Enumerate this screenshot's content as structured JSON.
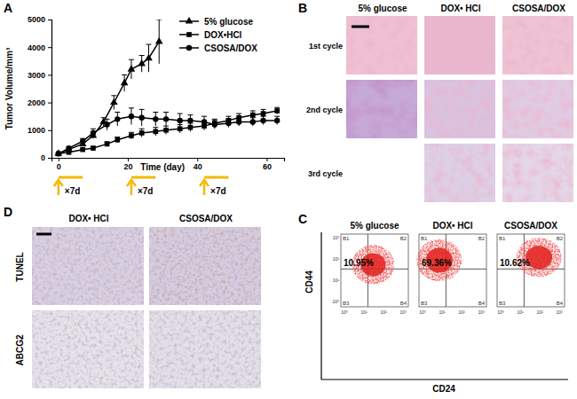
{
  "panel_labels": [
    "A",
    "B",
    "C",
    "D"
  ],
  "chart_data": {
    "type": "line",
    "x_label": "Time (day)",
    "y_label": "Tumor Volume/mm³",
    "xlim": [
      -2,
      65
    ],
    "xticks": [
      0,
      20,
      40,
      60
    ],
    "ylim": [
      0,
      5000
    ],
    "yticks": [
      0,
      1000,
      2000,
      3000,
      4000,
      5000
    ],
    "legend": "top-right",
    "series": [
      {
        "name": "5% glucose",
        "color": "#000000",
        "marker": "triangle",
        "x": [
          0,
          3,
          7,
          10,
          13,
          16,
          19,
          21,
          24,
          26,
          29
        ],
        "values": [
          150,
          300,
          500,
          800,
          1300,
          2000,
          2700,
          3200,
          3400,
          3600,
          4200
        ],
        "errors": [
          20,
          40,
          60,
          100,
          150,
          250,
          300,
          350,
          300,
          500,
          800
        ]
      },
      {
        "name": "DOX•HCl",
        "color": "#000000",
        "marker": "square",
        "x": [
          0,
          3,
          7,
          10,
          14,
          17,
          21,
          24,
          28,
          31,
          35,
          38,
          42,
          45,
          49,
          52,
          56,
          59,
          63
        ],
        "values": [
          150,
          200,
          300,
          350,
          500,
          650,
          800,
          900,
          950,
          1000,
          1050,
          1100,
          1150,
          1250,
          1350,
          1450,
          1550,
          1600,
          1700
        ],
        "errors": [
          20,
          30,
          50,
          60,
          80,
          100,
          120,
          150,
          150,
          150,
          150,
          150,
          150,
          150,
          150,
          150,
          150,
          150,
          120
        ]
      },
      {
        "name": "CSOSA/DOX",
        "color": "#000000",
        "marker": "circle",
        "x": [
          0,
          3,
          7,
          10,
          14,
          17,
          21,
          24,
          28,
          31,
          35,
          38,
          42,
          45,
          49,
          52,
          56,
          59,
          63
        ],
        "values": [
          150,
          350,
          600,
          900,
          1200,
          1400,
          1500,
          1450,
          1400,
          1400,
          1350,
          1350,
          1300,
          1200,
          1250,
          1300,
          1300,
          1350,
          1350
        ],
        "errors": [
          20,
          50,
          100,
          150,
          200,
          250,
          300,
          300,
          250,
          250,
          250,
          200,
          200,
          150,
          150,
          150,
          150,
          150,
          150
        ]
      }
    ],
    "annotations": [
      {
        "x": 0,
        "x_end": 7,
        "label": "×7d",
        "color": "#f5b800"
      },
      {
        "x": 21,
        "x_end": 28,
        "label": "×7d",
        "color": "#f5b800"
      },
      {
        "x": 42,
        "x_end": 49,
        "label": "×7d",
        "color": "#f5b800"
      }
    ]
  },
  "histology": {
    "columns": [
      "5% glucose",
      "DOX• HCl",
      "CSOSA/DOX"
    ],
    "rows": [
      {
        "label": "1st cycle",
        "images": [
          true,
          true,
          true
        ]
      },
      {
        "label": "2nd cycle",
        "images": [
          true,
          true,
          true
        ]
      },
      {
        "label": "3rd cycle",
        "images": [
          false,
          true,
          true
        ]
      }
    ]
  },
  "flow_cytometry": {
    "x_label": "CD24",
    "y_label": "CD44",
    "quadrants": [
      "B1",
      "B2",
      "B3",
      "B4"
    ],
    "axis_ticks": [
      "10⁰",
      "10¹",
      "10²",
      "10³"
    ],
    "plots": [
      {
        "title": "5% glucose",
        "percent": "10.95%"
      },
      {
        "title": "DOX• HCl",
        "percent": "69.36%"
      },
      {
        "title": "CSOSA/DOX",
        "percent": "10.62%"
      }
    ]
  },
  "staining": {
    "columns": [
      "DOX• HCl",
      "CSOSA/DOX"
    ],
    "rows": [
      "TUNEL",
      "ABCG2"
    ]
  }
}
